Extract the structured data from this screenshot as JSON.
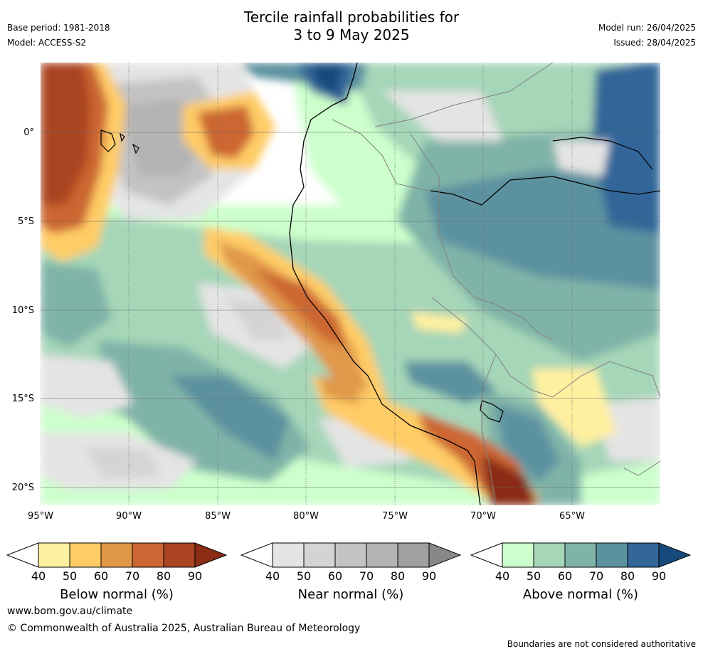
{
  "header": {
    "title_line1": "Tercile rainfall probabilities for",
    "title_line2": "3 to 9 May 2025",
    "base_period": "Base period: 1981-2018",
    "model": "Model: ACCESS-S2",
    "model_run": "Model run: 26/04/2025",
    "issued": "Issued: 28/04/2025"
  },
  "map": {
    "lat_labels": [
      "0°",
      "5°S",
      "10°S",
      "15°S",
      "20°S"
    ],
    "lon_labels": [
      "95°W",
      "90°W",
      "85°W",
      "80°W",
      "75°W",
      "70°W",
      "65°W"
    ],
    "colors": {
      "below": [
        "#fff0a0",
        "#ffcc66",
        "#e09848",
        "#cc6633",
        "#aa4422",
        "#8b2c15"
      ],
      "near": [
        "#e4e4e4",
        "#d4d4d4",
        "#c3c3c3",
        "#b4b4b4",
        "#a0a0a0",
        "#888888"
      ],
      "above": [
        "#ccffcc",
        "#a6d6b8",
        "#80b3a8",
        "#5b92a0",
        "#336699",
        "#174a7c"
      ],
      "coast": "#000000",
      "border": "#808080",
      "grid": "#666666"
    }
  },
  "colorbars": [
    {
      "title": "Below normal (%)",
      "ticks": [
        "40",
        "50",
        "60",
        "70",
        "80",
        "90"
      ]
    },
    {
      "title": "Near normal (%)",
      "ticks": [
        "40",
        "50",
        "60",
        "70",
        "80",
        "90"
      ]
    },
    {
      "title": "Above normal (%)",
      "ticks": [
        "40",
        "50",
        "60",
        "70",
        "80",
        "90"
      ]
    }
  ],
  "footer": {
    "website": "www.bom.gov.au/climate",
    "copyright": "© Commonwealth of Australia 2025, Australian Bureau of Meteorology",
    "disclaimer": "Boundaries are not considered authoritative"
  }
}
